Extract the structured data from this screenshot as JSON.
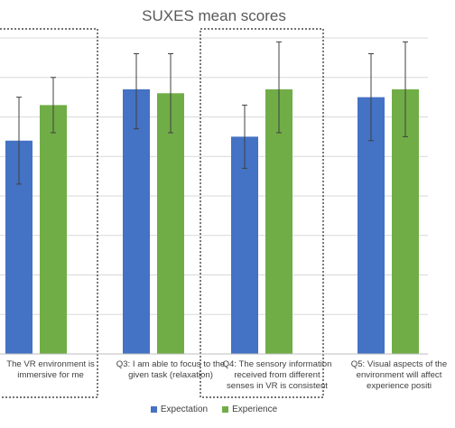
{
  "chart_data": {
    "type": "bar",
    "title": "SUXES mean scores",
    "categories": [
      "The VR environment is immersive for me",
      "Q3: I am able to focus to the given task (relaxation)",
      "Q4: The sensory information received from different senses in VR is consistent",
      "Q5: Visual aspects of the environment will affect experience positi"
    ],
    "series": [
      {
        "name": "Expectation",
        "color": "#4472C4",
        "values": [
          5.4,
          6.7,
          5.5,
          6.5
        ],
        "error_low": [
          4.3,
          5.7,
          4.7,
          5.4
        ],
        "error_high": [
          6.5,
          7.6,
          6.3,
          7.6
        ]
      },
      {
        "name": "Experience",
        "color": "#70AD47",
        "values": [
          6.3,
          6.6,
          6.7,
          6.7
        ],
        "error_low": [
          5.6,
          5.6,
          5.6,
          5.5
        ],
        "error_high": [
          7.0,
          7.6,
          7.9,
          7.9
        ]
      }
    ],
    "ylim": [
      0,
      8
    ],
    "grid": true,
    "legend_position": "bottom",
    "highlighted_categories": [
      0,
      2
    ]
  }
}
